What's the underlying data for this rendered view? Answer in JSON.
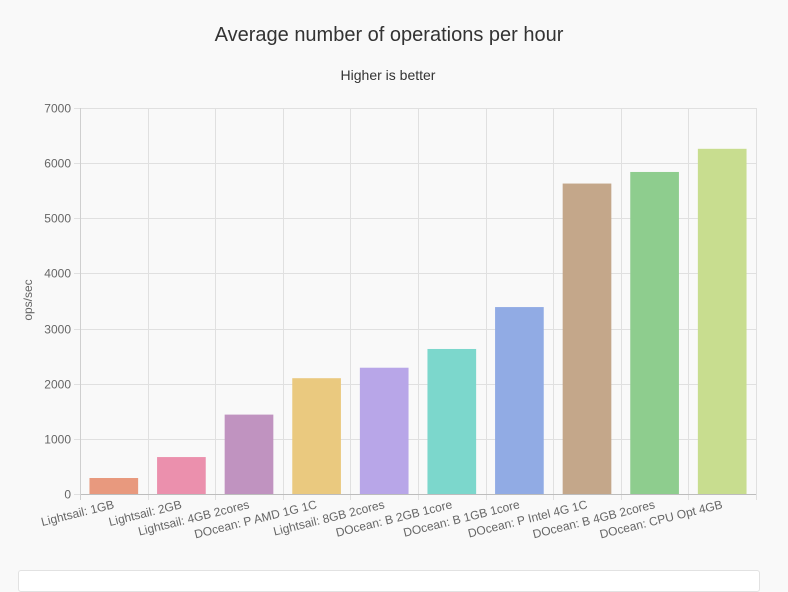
{
  "chart_data": {
    "type": "bar",
    "title": "Average number of operations per hour",
    "subtitle": "Higher is better",
    "xlabel": "",
    "ylabel": "ops/sec",
    "ylim": [
      0,
      7000
    ],
    "yticks": [
      0,
      1000,
      2000,
      3000,
      4000,
      5000,
      6000,
      7000
    ],
    "grid": true,
    "legend": "none",
    "categories": [
      "Lightsail: 1GB",
      "Lightsail: 2GB",
      "Lightsail: 4GB 2cores",
      "DOcean: P AMD 1G 1C",
      "Lightsail: 8GB 2cores",
      "DOcean: B 2GB 1core",
      "DOcean: B 1GB 1core",
      "DOcean: P Intel 4G 1C",
      "DOcean: B 4GB 2cores",
      "DOcean: CPU Opt 4GB"
    ],
    "values": [
      290,
      670,
      1440,
      2100,
      2290,
      2630,
      3390,
      5630,
      5840,
      6260
    ],
    "colors": [
      "#e8997e",
      "#eb90ad",
      "#c093c0",
      "#eac97f",
      "#b8a6e8",
      "#7cd7cc",
      "#91abe4",
      "#c4a78a",
      "#8ecd8e",
      "#c8dd8f"
    ]
  }
}
